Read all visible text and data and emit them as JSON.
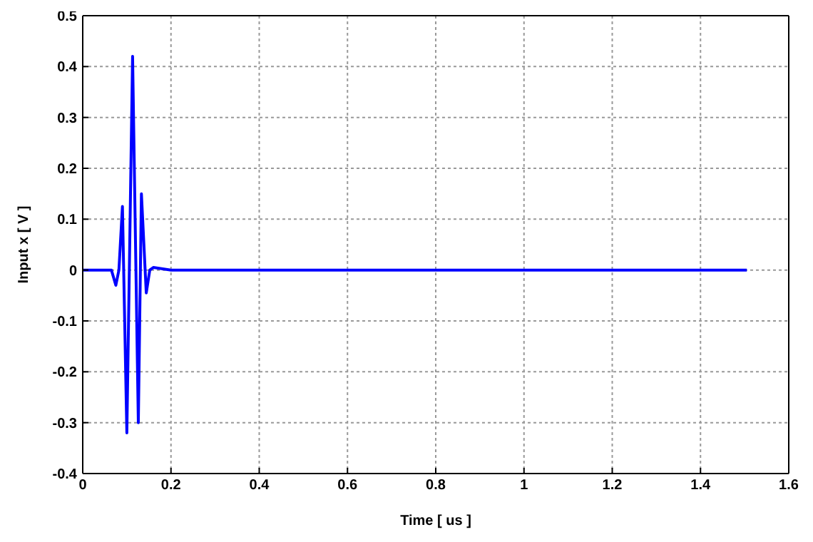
{
  "chart_data": {
    "type": "line",
    "xlabel": "Time [ us ]",
    "ylabel": "Input x [ V ]",
    "series": [
      {
        "color": "#0000ff",
        "x": [
          0,
          0.065,
          0.075,
          0.082,
          0.09,
          0.1,
          0.113,
          0.126,
          0.133,
          0.144,
          0.152,
          0.16,
          0.2,
          0.5,
          1.0,
          1.505
        ],
        "values": [
          0,
          0,
          -0.03,
          0,
          0.125,
          -0.32,
          0.42,
          -0.3,
          0.15,
          -0.045,
          0,
          0.005,
          0,
          0,
          0,
          0
        ]
      }
    ],
    "xlim": [
      0,
      1.6
    ],
    "xticks": [
      0,
      0.2,
      0.4,
      0.6,
      0.8,
      1,
      1.2,
      1.4,
      1.6
    ],
    "ylim": [
      -0.4,
      0.5
    ],
    "yticks": [
      -0.4,
      -0.3,
      -0.2,
      -0.1,
      0,
      0.1,
      0.2,
      0.3,
      0.4,
      0.5
    ],
    "grid": true,
    "legend": false,
    "marker": "none",
    "line_style": "solid"
  }
}
